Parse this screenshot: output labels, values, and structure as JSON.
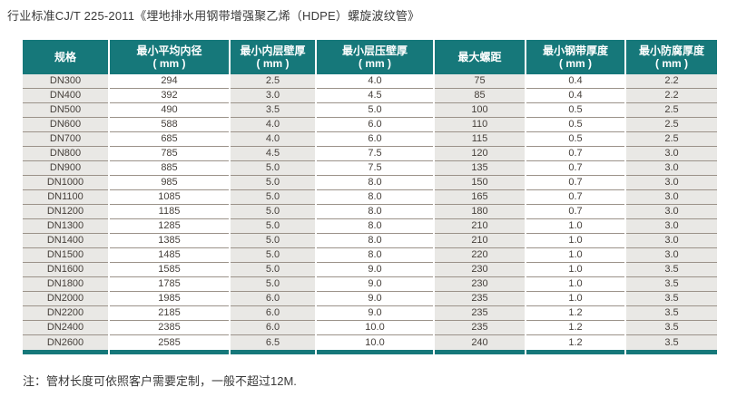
{
  "title": "行业标准CJ/T 225-2011《埋地排水用钢带增强聚乙烯（HDPE）螺旋波纹管》",
  "note": "注：管材长度可依照客户需要定制，一般不超过12M.",
  "colors": {
    "header_teal": "#16787a",
    "column_shade_gray": "#e9e8e5",
    "row_divider": "#9b9289",
    "text": "#453f3a"
  },
  "chart_data": {
    "type": "table",
    "title": "行业标准CJ/T 225-2011《埋地排水用钢带增强聚乙烯（HDPE）螺旋波纹管》",
    "columns": [
      {
        "label": "规格",
        "unit": ""
      },
      {
        "label": "最小平均内径",
        "unit": "( mm )"
      },
      {
        "label": "最小内层壁厚",
        "unit": "( mm )"
      },
      {
        "label": "最小层压壁厚",
        "unit": "( mm )"
      },
      {
        "label": "最大螺距",
        "unit": ""
      },
      {
        "label": "最小钢带厚度",
        "unit": "( mm )"
      },
      {
        "label": "最小防腐厚度",
        "unit": "( mm )"
      }
    ],
    "rows": [
      [
        "DN300",
        "294",
        "2.5",
        "4.0",
        "75",
        "0.4",
        "2.2"
      ],
      [
        "DN400",
        "392",
        "3.0",
        "4.5",
        "85",
        "0.4",
        "2.2"
      ],
      [
        "DN500",
        "490",
        "3.5",
        "5.0",
        "100",
        "0.5",
        "2.5"
      ],
      [
        "DN600",
        "588",
        "4.0",
        "6.0",
        "110",
        "0.5",
        "2.5"
      ],
      [
        "DN700",
        "685",
        "4.0",
        "6.0",
        "115",
        "0.5",
        "2.5"
      ],
      [
        "DN800",
        "785",
        "4.5",
        "7.5",
        "120",
        "0.7",
        "3.0"
      ],
      [
        "DN900",
        "885",
        "5.0",
        "7.5",
        "135",
        "0.7",
        "3.0"
      ],
      [
        "DN1000",
        "985",
        "5.0",
        "8.0",
        "150",
        "0.7",
        "3.0"
      ],
      [
        "DN1100",
        "1085",
        "5.0",
        "8.0",
        "165",
        "0.7",
        "3.0"
      ],
      [
        "DN1200",
        "1185",
        "5.0",
        "8.0",
        "180",
        "0.7",
        "3.0"
      ],
      [
        "DN1300",
        "1285",
        "5.0",
        "8.0",
        "210",
        "1.0",
        "3.0"
      ],
      [
        "DN1400",
        "1385",
        "5.0",
        "8.0",
        "210",
        "1.0",
        "3.0"
      ],
      [
        "DN1500",
        "1485",
        "5.0",
        "8.0",
        "220",
        "1.0",
        "3.0"
      ],
      [
        "DN1600",
        "1585",
        "5.0",
        "9.0",
        "230",
        "1.0",
        "3.5"
      ],
      [
        "DN1800",
        "1785",
        "5.0",
        "9.0",
        "230",
        "1.0",
        "3.5"
      ],
      [
        "DN2000",
        "1985",
        "6.0",
        "9.0",
        "235",
        "1.0",
        "3.5"
      ],
      [
        "DN2200",
        "2185",
        "6.0",
        "9.0",
        "235",
        "1.2",
        "3.5"
      ],
      [
        "DN2400",
        "2385",
        "6.0",
        "10.0",
        "235",
        "1.2",
        "3.5"
      ],
      [
        "DN2600",
        "2585",
        "6.5",
        "10.0",
        "240",
        "1.2",
        "3.5"
      ]
    ]
  }
}
